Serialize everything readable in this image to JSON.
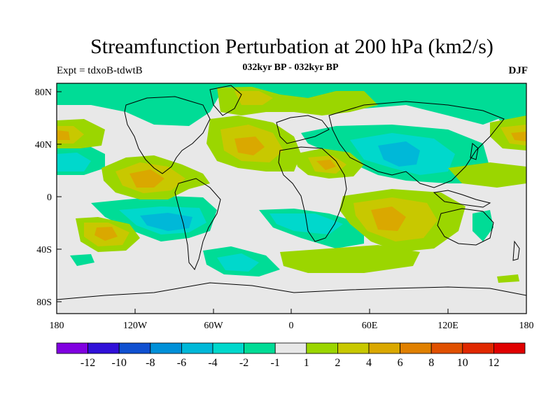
{
  "title": "Streamfunction Perturbation at 200 hPa (km2/s)",
  "left_string": "Expt = tdxoB-tdwtB",
  "center_string": "032kyr BP - 032kyr BP",
  "right_string": "DJF",
  "map": {
    "projection": "cylindrical equidistant",
    "lon_range": [
      -180,
      180
    ],
    "lat_range": [
      -90,
      90
    ],
    "x_tick_labels": [
      "180",
      "120W",
      "60W",
      "0",
      "60E",
      "120E",
      "180"
    ],
    "y_tick_labels": [
      "80N",
      "40N",
      "0",
      "40S",
      "80S"
    ],
    "background_color": "#e8e8e8",
    "contour_colors": {
      "-4": "#00b8d8",
      "-2": "#00d8cc",
      "-1": "#00dc96",
      "2": "#9bd600",
      "4": "#c8c800",
      "6": "#daa800"
    }
  },
  "colorbar": {
    "colors": [
      "#8000e0",
      "#3010d8",
      "#1050d0",
      "#0090d8",
      "#00b8d8",
      "#00d8cc",
      "#00dc96",
      "#e8e8e8",
      "#9bd600",
      "#c8c800",
      "#daa800",
      "#e08000",
      "#e05000",
      "#e02800",
      "#e00000"
    ],
    "labels": [
      "-12",
      "-10",
      "-8",
      "-6",
      "-4",
      "-2",
      "-1",
      "1",
      "2",
      "4",
      "6",
      "8",
      "10",
      "12"
    ]
  }
}
